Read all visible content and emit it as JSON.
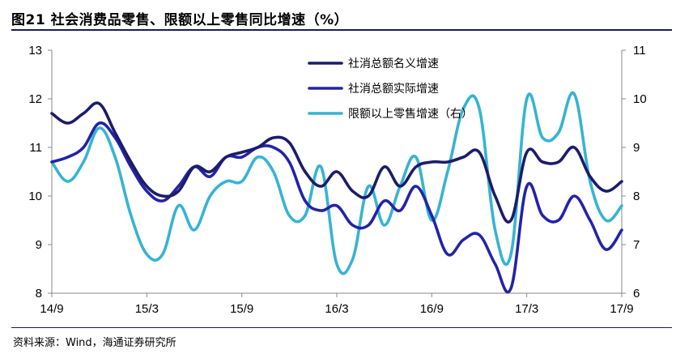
{
  "title": "图21 社会消费品零售、限额以上零售同比增速（%）",
  "source": "资料来源：Wind，海通证券研究所",
  "chart_data": {
    "type": "line",
    "x_ticks": [
      "14/9",
      "15/3",
      "15/9",
      "16/3",
      "16/9",
      "17/3",
      "17/9"
    ],
    "x_tick_index": [
      0,
      6,
      12,
      18,
      24,
      30,
      36
    ],
    "x": [
      "14/9",
      "14/10",
      "14/11",
      "14/12",
      "15/1",
      "15/2",
      "15/3",
      "15/4",
      "15/5",
      "15/6",
      "15/7",
      "15/8",
      "15/9",
      "15/10",
      "15/11",
      "15/12",
      "16/1",
      "16/2",
      "16/3",
      "16/4",
      "16/5",
      "16/6",
      "16/7",
      "16/8",
      "16/9",
      "16/10",
      "16/11",
      "16/12",
      "17/1",
      "17/2",
      "17/3",
      "17/4",
      "17/5",
      "17/6",
      "17/7",
      "17/8",
      "17/9"
    ],
    "y_left": {
      "ylim": [
        8,
        13
      ],
      "ticks": [
        8,
        9,
        10,
        11,
        12,
        13
      ]
    },
    "y_right": {
      "ylim": [
        6,
        11
      ],
      "ticks": [
        6,
        7,
        8,
        9,
        10,
        11
      ]
    },
    "legend_position": "top-right",
    "series": [
      {
        "name": "社消总额名义增速",
        "axis": "left",
        "color": "#1c1c6b",
        "values": [
          11.7,
          11.5,
          11.7,
          11.9,
          11.3,
          10.7,
          10.2,
          10.0,
          10.1,
          10.6,
          10.5,
          10.8,
          10.9,
          11.0,
          11.2,
          11.1,
          10.5,
          10.2,
          10.5,
          10.1,
          10.0,
          10.6,
          10.2,
          10.6,
          10.7,
          10.7,
          10.8,
          10.9,
          10.0,
          9.5,
          10.9,
          10.7,
          10.7,
          11.0,
          10.4,
          10.1,
          10.3
        ]
      },
      {
        "name": "社消总额实际增速",
        "axis": "left",
        "color": "#2323a8",
        "values": [
          10.7,
          10.8,
          11.0,
          11.5,
          11.2,
          10.6,
          10.1,
          9.9,
          10.2,
          10.6,
          10.4,
          10.8,
          10.8,
          11.0,
          11.0,
          10.7,
          9.9,
          9.7,
          9.8,
          9.4,
          9.4,
          9.9,
          9.7,
          10.2,
          9.6,
          8.8,
          9.1,
          9.2,
          8.6,
          8.1,
          10.2,
          9.6,
          9.5,
          10.0,
          9.5,
          8.9,
          9.3
        ]
      },
      {
        "name": "限额以上零售增速（右）",
        "axis": "right",
        "color": "#37b3d3",
        "values": [
          8.7,
          8.3,
          8.7,
          9.4,
          8.8,
          7.6,
          6.8,
          6.8,
          7.8,
          7.3,
          8.0,
          8.3,
          8.3,
          8.8,
          8.5,
          7.6,
          7.6,
          8.6,
          6.6,
          6.7,
          8.2,
          7.4,
          8.2,
          8.8,
          7.5,
          8.5,
          9.8,
          9.8,
          7.3,
          6.8,
          10.0,
          9.2,
          9.3,
          10.1,
          8.3,
          7.5,
          7.8
        ]
      }
    ]
  }
}
